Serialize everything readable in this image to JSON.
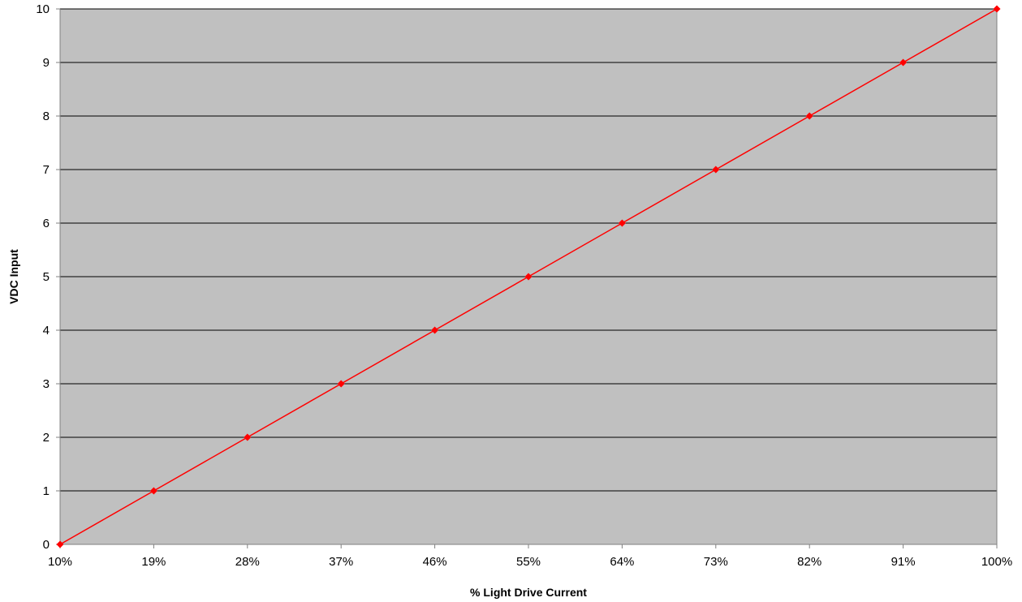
{
  "chart_data": {
    "type": "line",
    "title": "",
    "xlabel": "% Light Drive Current",
    "ylabel": "VDC Input",
    "categories": [
      "10%",
      "19%",
      "28%",
      "37%",
      "46%",
      "55%",
      "64%",
      "73%",
      "82%",
      "91%",
      "100%"
    ],
    "yticks": [
      "0",
      "1",
      "2",
      "3",
      "4",
      "5",
      "6",
      "7",
      "8",
      "9",
      "10"
    ],
    "ylim": [
      0,
      10
    ],
    "grid": true,
    "legend": "none",
    "series": [
      {
        "values": [
          0,
          1,
          2,
          3,
          4,
          5,
          6,
          7,
          8,
          9,
          10
        ],
        "color": "#ff0000",
        "marker": "diamond"
      }
    ],
    "colors": {
      "plot_background": "#c0c0c0",
      "gridline": "#000000",
      "axis": "#808080"
    }
  }
}
